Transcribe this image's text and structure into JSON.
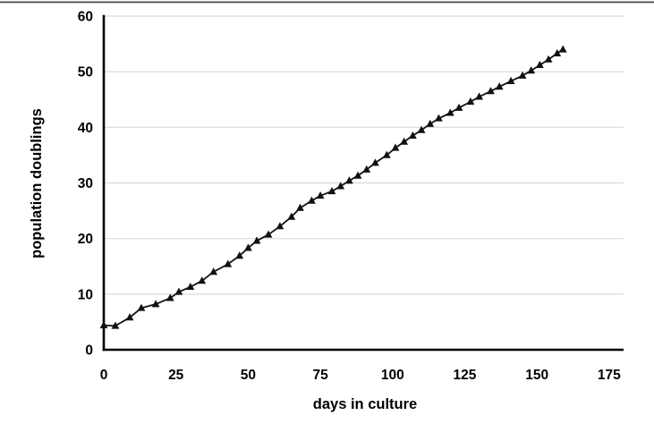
{
  "figure": {
    "background": "#ffffff",
    "top_rule_color": "#4a4a4a"
  },
  "chart_data": {
    "type": "line",
    "title": "",
    "xlabel": "days in culture",
    "ylabel": "population doublings",
    "x": [
      0,
      4,
      9,
      13,
      18,
      23,
      26,
      30,
      34,
      38,
      43,
      47,
      50,
      53,
      57,
      61,
      65,
      68,
      72,
      75,
      79,
      82,
      85,
      88,
      91,
      94,
      98,
      101,
      104,
      107,
      110,
      113,
      116,
      120,
      123,
      127,
      130,
      134,
      137,
      141,
      145,
      148,
      151,
      154,
      157,
      159
    ],
    "values": [
      4.4,
      4.3,
      5.8,
      7.5,
      8.2,
      9.3,
      10.4,
      11.3,
      12.4,
      14.0,
      15.4,
      16.9,
      18.3,
      19.6,
      20.7,
      22.2,
      23.9,
      25.5,
      26.8,
      27.7,
      28.5,
      29.4,
      30.4,
      31.3,
      32.4,
      33.6,
      35.0,
      36.3,
      37.4,
      38.5,
      39.5,
      40.6,
      41.6,
      42.6,
      43.5,
      44.6,
      45.5,
      46.5,
      47.3,
      48.3,
      49.3,
      50.2,
      51.2,
      52.2,
      53.3,
      54.0
    ],
    "xlim": [
      0,
      180
    ],
    "ylim": [
      0,
      60
    ],
    "xticks": [
      0,
      25,
      50,
      75,
      100,
      125,
      150,
      175
    ],
    "yticks": [
      0,
      10,
      20,
      30,
      40,
      50,
      60
    ],
    "grid": "horizontal",
    "legend": "none",
    "marker": "triangle-up",
    "line_color": "#111111",
    "grid_color": "#d9d9d9",
    "axis_color": "#000000",
    "tick_label_color": "#000000"
  }
}
